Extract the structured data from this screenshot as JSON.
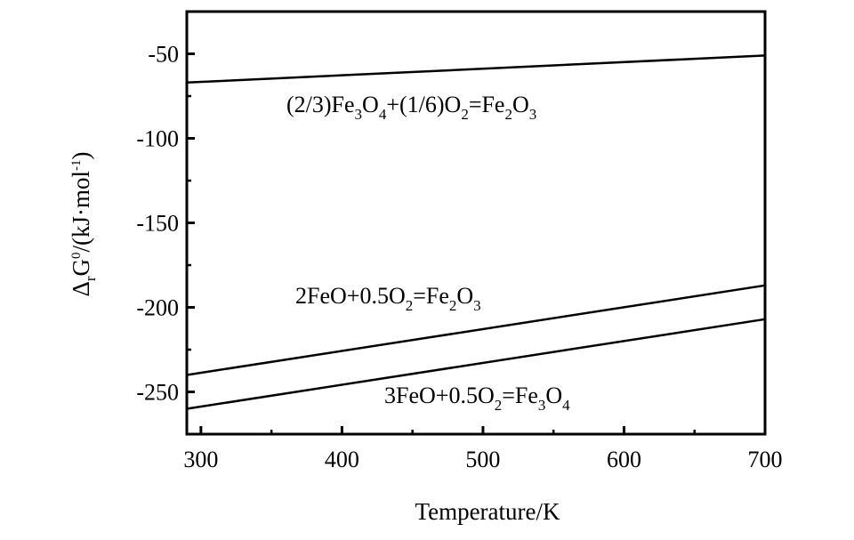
{
  "chart_data": {
    "type": "line",
    "title": "",
    "xlabel": "Temperature/K",
    "ylabel": {
      "delta": "Δ",
      "r": "r",
      "g": "G",
      "zero": "0",
      "unit": "/(kJ·mol",
      "minus_one": "-1",
      "close": ")"
    },
    "xlim": [
      290,
      700
    ],
    "ylim": [
      -275,
      -25
    ],
    "xticks": [
      300,
      400,
      500,
      600,
      700
    ],
    "yticks": [
      -50,
      -100,
      -150,
      -200,
      -250
    ],
    "grid": false,
    "series": [
      {
        "label_parts": [
          {
            "t": "(2/3)Fe",
            "s": ""
          },
          {
            "t": "3",
            "s": "sub"
          },
          {
            "t": "O",
            "s": ""
          },
          {
            "t": "4",
            "s": "sub"
          },
          {
            "t": "+(1/6)O",
            "s": ""
          },
          {
            "t": "2",
            "s": "sub"
          },
          {
            "t": "=Fe",
            "s": ""
          },
          {
            "t": "2",
            "s": "sub"
          },
          {
            "t": "O",
            "s": ""
          },
          {
            "t": "3",
            "s": "sub"
          }
        ],
        "x": [
          290,
          700
        ],
        "y": [
          -67,
          -51
        ]
      },
      {
        "label_parts": [
          {
            "t": "2FeO+0.5O",
            "s": ""
          },
          {
            "t": "2",
            "s": "sub"
          },
          {
            "t": "=Fe",
            "s": ""
          },
          {
            "t": "2",
            "s": "sub"
          },
          {
            "t": "O",
            "s": ""
          },
          {
            "t": "3",
            "s": "sub"
          }
        ],
        "x": [
          290,
          700
        ],
        "y": [
          -240,
          -187
        ]
      },
      {
        "label_parts": [
          {
            "t": "3FeO+0.5O",
            "s": ""
          },
          {
            "t": "2",
            "s": "sub"
          },
          {
            "t": "=Fe",
            "s": ""
          },
          {
            "t": "3",
            "s": "sub"
          },
          {
            "t": "O",
            "s": ""
          },
          {
            "t": "4",
            "s": "sub"
          }
        ],
        "x": [
          290,
          700
        ],
        "y": [
          -260,
          -207
        ]
      }
    ]
  }
}
